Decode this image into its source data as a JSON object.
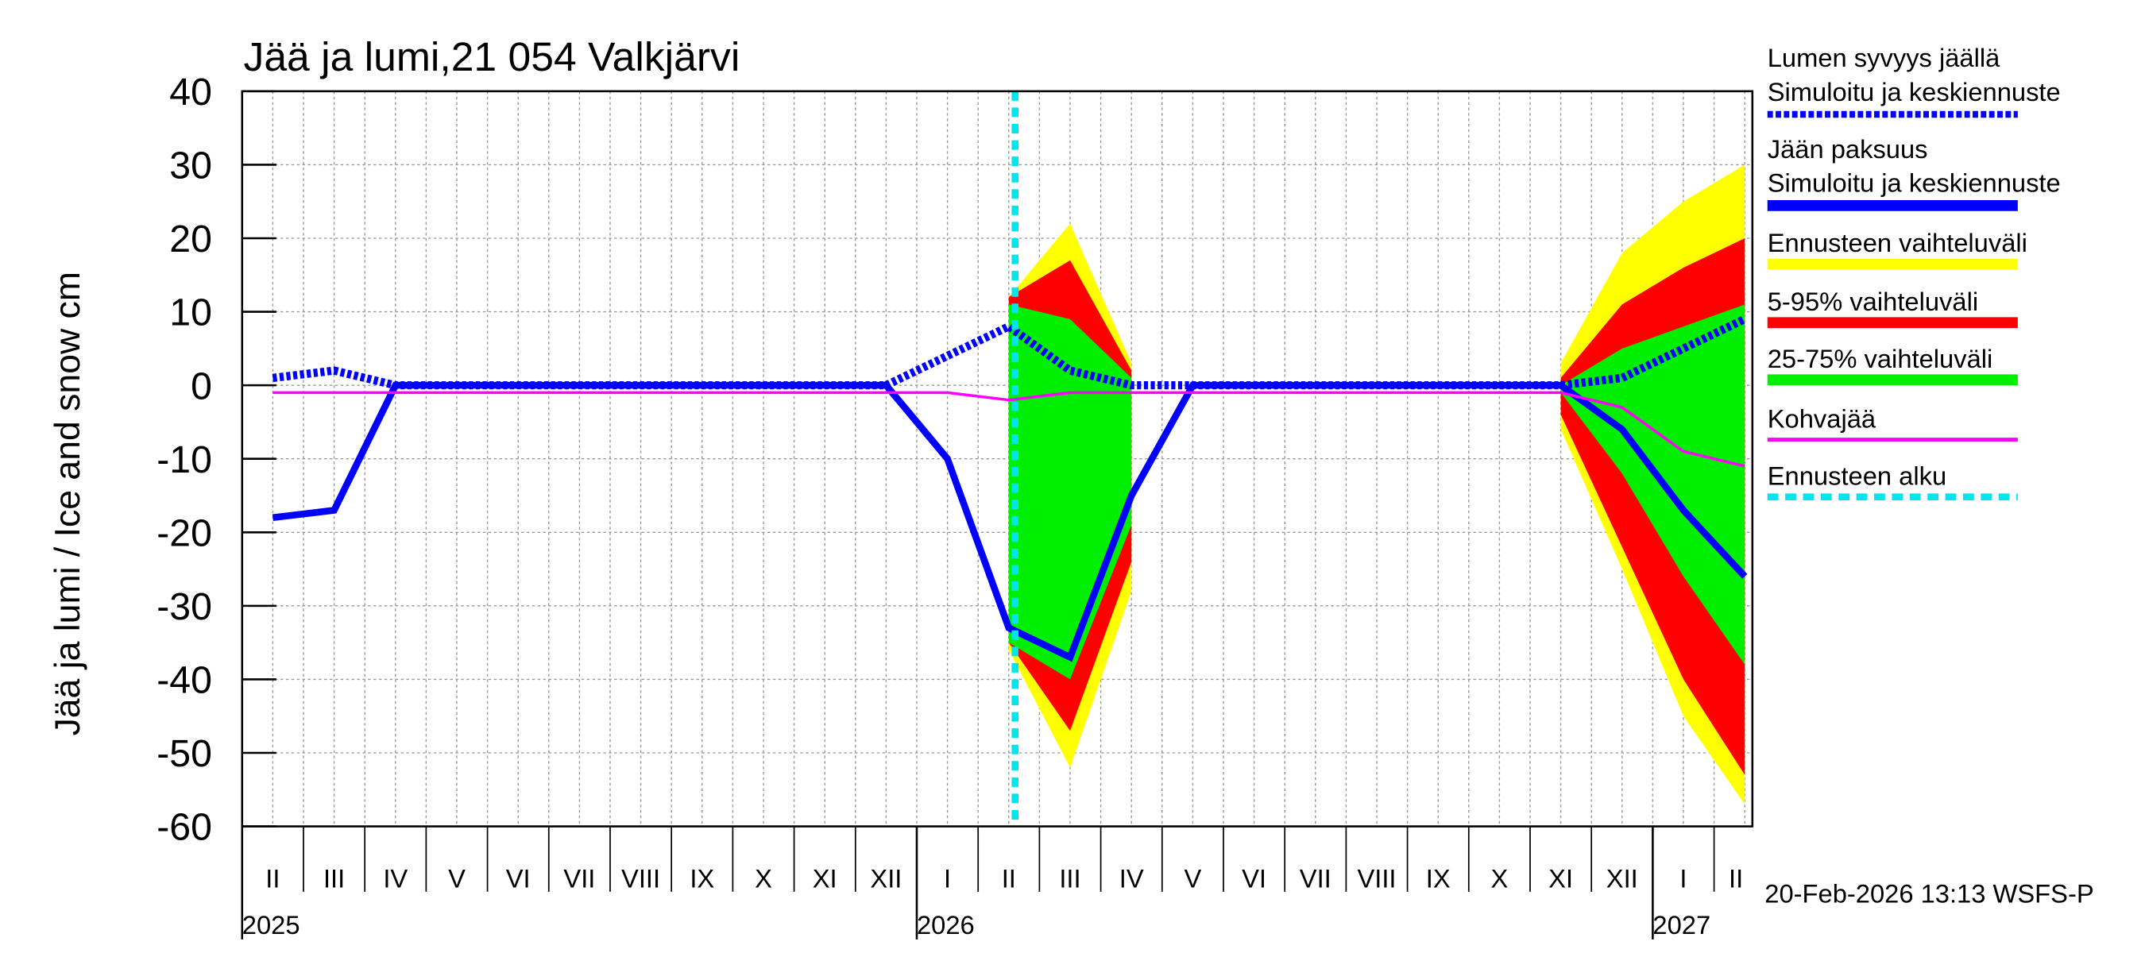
{
  "chart_data": {
    "type": "line",
    "title": "Jää ja lumi,21 054 Valkjärvi",
    "ylabel": "Jää ja lumi / Ice and snow    cm",
    "footer": "20-Feb-2026 13:13 WSFS-P",
    "categories": [
      "II",
      "III",
      "IV",
      "V",
      "VI",
      "VII",
      "VIII",
      "IX",
      "X",
      "XI",
      "XII",
      "I",
      "II",
      "III",
      "IV",
      "V",
      "VI",
      "VII",
      "VIII",
      "IX",
      "X",
      "XI",
      "XII",
      "I",
      "II"
    ],
    "year_labels": [
      "2025",
      null,
      null,
      null,
      null,
      null,
      null,
      null,
      null,
      null,
      null,
      "2026",
      null,
      null,
      null,
      null,
      null,
      null,
      null,
      null,
      null,
      null,
      null,
      "2027",
      null
    ],
    "ylim": [
      -60,
      40
    ],
    "yticks": [
      -60,
      -50,
      -40,
      -30,
      -20,
      -10,
      0,
      10,
      20,
      30,
      40
    ],
    "grid": true,
    "bands": [
      {
        "name": "Ennusteen vaihteluväli",
        "color": "#ffff00",
        "upper": [
          null,
          null,
          null,
          null,
          null,
          null,
          null,
          null,
          null,
          null,
          null,
          null,
          12,
          22,
          3,
          null,
          null,
          null,
          null,
          null,
          null,
          3,
          18,
          25,
          30
        ],
        "lower": [
          null,
          null,
          null,
          null,
          null,
          null,
          null,
          null,
          null,
          null,
          null,
          null,
          -36,
          -52,
          -28,
          null,
          null,
          null,
          null,
          null,
          null,
          -6,
          -25,
          -45,
          -57
        ]
      },
      {
        "name": "5-95% vaihteluväli",
        "color": "#ff0000",
        "upper": [
          null,
          null,
          null,
          null,
          null,
          null,
          null,
          null,
          null,
          null,
          null,
          null,
          12,
          17,
          2,
          null,
          null,
          null,
          null,
          null,
          null,
          1,
          11,
          16,
          20
        ],
        "lower": [
          null,
          null,
          null,
          null,
          null,
          null,
          null,
          null,
          null,
          null,
          null,
          null,
          -35,
          -47,
          -24,
          null,
          null,
          null,
          null,
          null,
          null,
          -4,
          -22,
          -40,
          -53
        ]
      },
      {
        "name": "25-75% vaihteluväli",
        "color": "#00ee00",
        "upper": [
          null,
          null,
          null,
          null,
          null,
          null,
          null,
          null,
          null,
          null,
          null,
          null,
          11,
          9,
          1,
          null,
          null,
          null,
          null,
          null,
          null,
          0,
          5,
          8,
          11
        ],
        "lower": [
          null,
          null,
          null,
          null,
          null,
          null,
          null,
          null,
          null,
          null,
          null,
          null,
          -35,
          -40,
          -19,
          null,
          null,
          null,
          null,
          null,
          null,
          -1,
          -12,
          -26,
          -38
        ]
      }
    ],
    "series": [
      {
        "name": "Lumen syvyys jäällä",
        "subtitle": "Simuloitu ja keskiennuste",
        "color": "#0000ff",
        "style": "dotted",
        "values": [
          1,
          2,
          0,
          0,
          0,
          0,
          0,
          0,
          0,
          0,
          0,
          4,
          8,
          2,
          0,
          0,
          0,
          0,
          0,
          0,
          0,
          0,
          1,
          5,
          9
        ]
      },
      {
        "name": "Jään paksuus",
        "subtitle": "Simuloitu ja keskiennuste",
        "color": "#0000ff",
        "style": "solid",
        "values": [
          -18,
          -17,
          0,
          0,
          0,
          0,
          0,
          0,
          0,
          0,
          0,
          -10,
          -33,
          -37,
          -15,
          0,
          0,
          0,
          0,
          0,
          0,
          0,
          -6,
          -17,
          -26
        ]
      },
      {
        "name": "Kohvajää",
        "color": "#ff00ff",
        "style": "thin",
        "values": [
          -1,
          -1,
          -1,
          -1,
          -1,
          -1,
          -1,
          -1,
          -1,
          -1,
          -1,
          -1,
          -2,
          -1,
          -1,
          -1,
          -1,
          -1,
          -1,
          -1,
          -1,
          -1,
          -3,
          -9,
          -11
        ]
      }
    ],
    "forecast_start": {
      "name": "Ennusteen alku",
      "color": "#00e5ee"
    }
  }
}
